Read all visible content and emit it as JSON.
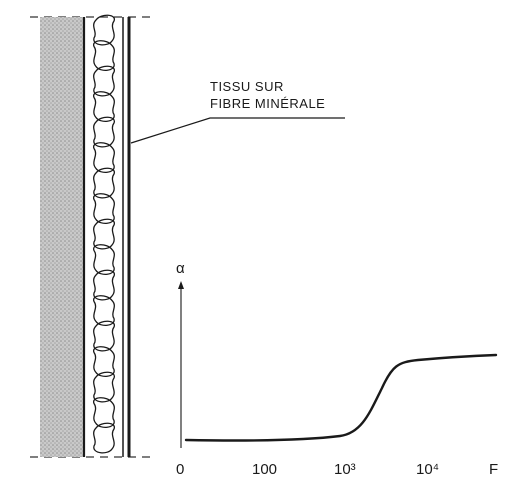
{
  "annotation": {
    "line1": "TISSU SUR",
    "line2": "FIBRE MINÉRALE"
  },
  "chart_data": {
    "type": "line",
    "ylabel": "α",
    "xlabel": "F",
    "x_ticks": [
      "0",
      "100",
      "10³",
      "10⁴"
    ],
    "x_scale": "qualitative frequency axis",
    "shape": "low flat absorption at low frequencies, rising sharply near 10³, levelling at a high plateau above 10⁴"
  }
}
